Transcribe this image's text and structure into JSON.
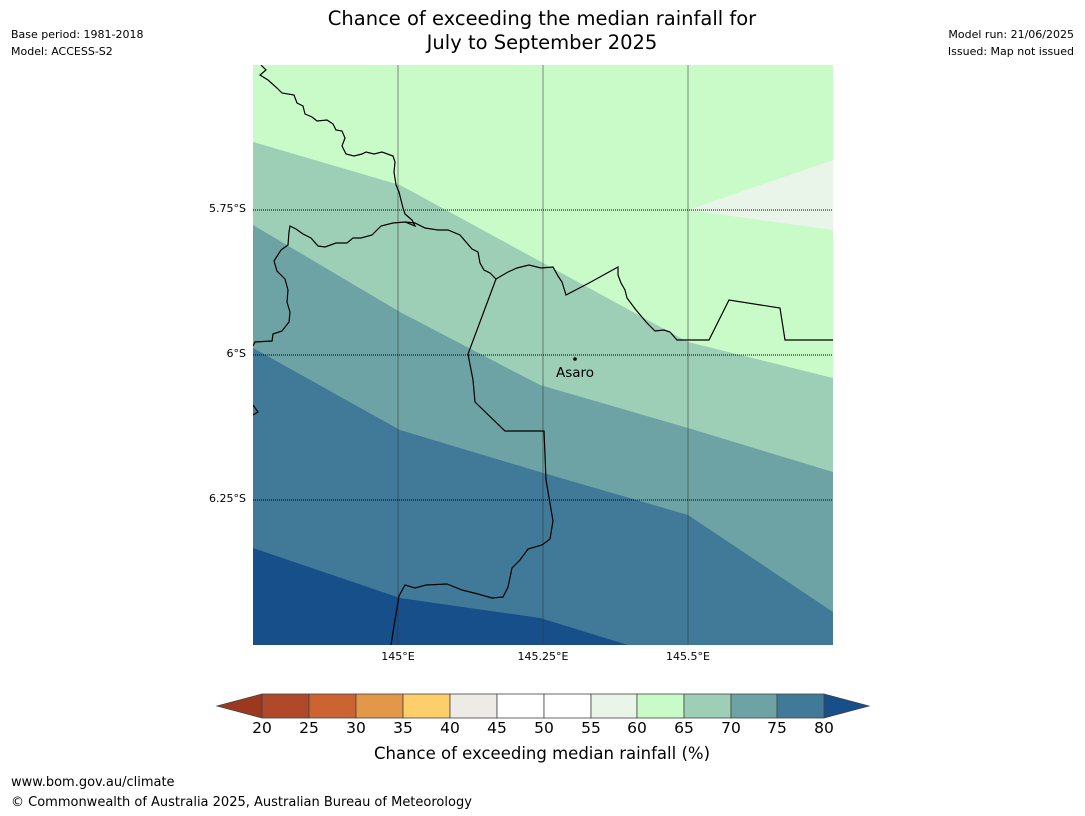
{
  "header": {
    "title_line1": "Chance of exceeding the median rainfall for",
    "title_line2": "July to September 2025",
    "base_period": "Base period: 1981-2018",
    "model": "Model: ACCESS-S2",
    "model_run": "Model run: 21/06/2025",
    "issued": "Issued: Map not issued"
  },
  "map": {
    "lat_labels": [
      "5.75°S",
      "6°S",
      "6.25°S"
    ],
    "lon_labels": [
      "145°E",
      "145.25°E",
      "145.5°E"
    ],
    "place": {
      "name": "Asaro"
    }
  },
  "colorbar": {
    "title": "Chance of exceeding median rainfall (%)",
    "ticks": [
      "20",
      "25",
      "30",
      "35",
      "40",
      "45",
      "50",
      "55",
      "60",
      "65",
      "70",
      "75",
      "80"
    ],
    "colors": [
      "#b0482a",
      "#cc6432",
      "#e39748",
      "#fece6a",
      "#eeeae6",
      "#ffffff",
      "#ffffff",
      "#e8f5e8",
      "#c8fbc8",
      "#9dcfb7",
      "#6ea3a6",
      "#417a98"
    ],
    "under_color": "#9b3820",
    "over_color": "#164f8a"
  },
  "footer": {
    "url": "www.bom.gov.au/climate",
    "copyright": "© Commonwealth of Australia 2025, Australian Bureau of Meteorology"
  }
}
